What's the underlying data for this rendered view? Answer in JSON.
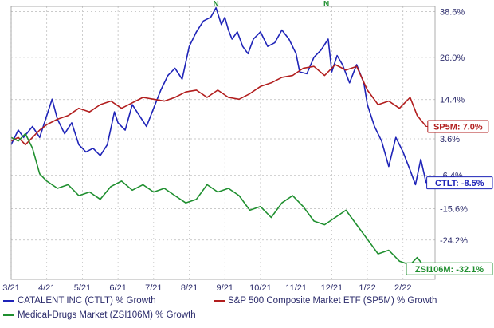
{
  "chart_data": {
    "type": "line",
    "x_ticks": [
      "3/21",
      "4/21",
      "5/21",
      "6/21",
      "7/21",
      "8/21",
      "9/21",
      "10/21",
      "11/21",
      "12/21",
      "1/22",
      "2/22"
    ],
    "y_ticks": [
      "38.6%",
      "26.0%",
      "14.4%",
      "3.6%",
      "-6.4%",
      "-15.6%",
      "-24.2%"
    ],
    "ylim": [
      -35,
      40
    ],
    "grid": true,
    "series": [
      {
        "name": "CATALENT INC (CTLT) % Growth",
        "label": "CTLT: -8.5%",
        "color": "#1f24b8",
        "x": [
          0.0,
          0.2,
          0.35,
          0.6,
          0.8,
          1.0,
          1.15,
          1.3,
          1.5,
          1.7,
          1.9,
          2.1,
          2.3,
          2.5,
          2.7,
          2.9,
          3.0,
          3.2,
          3.4,
          3.6,
          3.8,
          4.0,
          4.2,
          4.4,
          4.6,
          4.8,
          5.0,
          5.2,
          5.4,
          5.6,
          5.75,
          5.9,
          6.0,
          6.1,
          6.2,
          6.35,
          6.5,
          6.65,
          6.8,
          7.0,
          7.2,
          7.4,
          7.6,
          7.8,
          8.0,
          8.1,
          8.3,
          8.5,
          8.7,
          8.9,
          9.0,
          9.15,
          9.3,
          9.5,
          9.7,
          9.9,
          10.0,
          10.2,
          10.4,
          10.6,
          10.8,
          11.0,
          11.2,
          11.35,
          11.5,
          11.65
        ],
        "values": [
          2.0,
          6.0,
          4.0,
          7.0,
          4.0,
          10.0,
          14.5,
          9.0,
          5.0,
          8.0,
          2.0,
          0.0,
          1.0,
          -1.0,
          2.0,
          11.0,
          8.0,
          6.0,
          13.0,
          10.0,
          7.0,
          12.0,
          17.0,
          21.0,
          23.0,
          20.0,
          29.0,
          33.0,
          36.0,
          37.0,
          39.6,
          35.0,
          37.0,
          33.5,
          31.0,
          33.0,
          29.0,
          27.0,
          31.0,
          33.0,
          29.0,
          30.0,
          33.5,
          31.0,
          27.0,
          22.0,
          21.5,
          26.0,
          28.0,
          31.0,
          22.0,
          26.5,
          24.0,
          19.0,
          24.0,
          19.0,
          13.0,
          7.0,
          3.0,
          -4.0,
          4.0,
          0.0,
          -5.0,
          -9.0,
          -2.0,
          -8.5
        ]
      },
      {
        "name": "S&P 500 Composite Market ETF (SP5M) % Growth",
        "label": "SP5M: 7.0%",
        "color": "#b21e1e",
        "x": [
          0.0,
          0.2,
          0.4,
          0.6,
          0.8,
          1.0,
          1.3,
          1.6,
          1.9,
          2.2,
          2.5,
          2.8,
          3.1,
          3.4,
          3.7,
          4.0,
          4.3,
          4.6,
          4.9,
          5.2,
          5.5,
          5.8,
          6.1,
          6.4,
          6.7,
          7.0,
          7.3,
          7.6,
          7.9,
          8.2,
          8.5,
          8.8,
          9.1,
          9.4,
          9.7,
          10.0,
          10.3,
          10.6,
          10.9,
          11.2,
          11.4,
          11.65
        ],
        "values": [
          3.0,
          4.0,
          2.0,
          4.0,
          6.0,
          7.5,
          9.0,
          10.0,
          12.0,
          11.0,
          13.0,
          14.0,
          12.0,
          13.5,
          15.0,
          14.5,
          14.0,
          15.0,
          16.5,
          17.0,
          15.0,
          17.0,
          15.0,
          14.5,
          16.0,
          18.0,
          19.0,
          20.5,
          21.0,
          23.0,
          23.5,
          21.0,
          24.0,
          22.5,
          23.5,
          17.0,
          13.0,
          14.0,
          12.0,
          15.0,
          10.0,
          7.0
        ]
      },
      {
        "name": "Medical-Drugs Market (ZSI106M) % Growth",
        "label": "ZSI106M: -32.1%",
        "color": "#1f8f2f",
        "x": [
          0.0,
          0.2,
          0.4,
          0.6,
          0.8,
          1.0,
          1.3,
          1.6,
          1.9,
          2.2,
          2.5,
          2.8,
          3.1,
          3.4,
          3.7,
          4.0,
          4.3,
          4.6,
          4.9,
          5.2,
          5.5,
          5.8,
          6.1,
          6.4,
          6.7,
          7.0,
          7.3,
          7.6,
          7.9,
          8.2,
          8.5,
          8.8,
          9.1,
          9.4,
          9.7,
          10.0,
          10.3,
          10.6,
          10.9,
          11.2,
          11.4,
          11.65
        ],
        "values": [
          4.0,
          3.0,
          5.0,
          1.0,
          -6.0,
          -8.0,
          -10.0,
          -9.0,
          -12.0,
          -11.0,
          -13.0,
          -9.5,
          -8.0,
          -10.5,
          -9.0,
          -11.0,
          -10.0,
          -12.0,
          -14.0,
          -13.0,
          -9.0,
          -11.0,
          -10.0,
          -12.0,
          -16.0,
          -15.0,
          -18.0,
          -14.0,
          -12.0,
          -15.0,
          -19.0,
          -20.0,
          -18.0,
          -16.0,
          -20.0,
          -24.0,
          -28.0,
          -27.0,
          -30.0,
          -31.0,
          -29.0,
          -32.1
        ]
      }
    ],
    "markers": [
      {
        "label": "N",
        "series": "CATALENT INC (CTLT) % Growth",
        "x": 5.75,
        "value": 39.6
      },
      {
        "label": "N",
        "series": "CATALENT INC (CTLT) % Growth",
        "x": 8.85,
        "value": 39.6
      }
    ],
    "legend_position": "bottom"
  }
}
